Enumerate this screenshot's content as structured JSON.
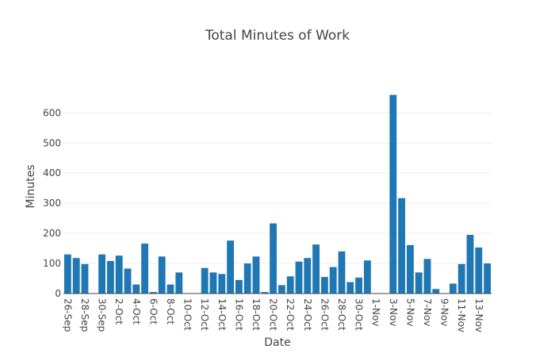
{
  "chart_data": {
    "type": "bar",
    "title": "Total Minutes of Work",
    "xlabel": "Date",
    "ylabel": "Minutes",
    "ylim": [
      0,
      680
    ],
    "yticks": [
      0,
      100,
      200,
      300,
      400,
      500,
      600
    ],
    "grid": true,
    "color": "#1f77b4",
    "categories": [
      "26-Sep",
      "27-Sep",
      "28-Sep",
      "29-Sep",
      "30-Sep",
      "1-Oct",
      "2-Oct",
      "3-Oct",
      "4-Oct",
      "5-Oct",
      "6-Oct",
      "7-Oct",
      "8-Oct",
      "9-Oct",
      "10-Oct",
      "11-Oct",
      "12-Oct",
      "13-Oct",
      "14-Oct",
      "15-Oct",
      "16-Oct",
      "17-Oct",
      "18-Oct",
      "19-Oct",
      "20-Oct",
      "21-Oct",
      "22-Oct",
      "23-Oct",
      "24-Oct",
      "25-Oct",
      "26-Oct",
      "27-Oct",
      "28-Oct",
      "29-Oct",
      "30-Oct",
      "31-Oct",
      "1-Nov",
      "2-Nov",
      "3-Nov",
      "4-Nov",
      "5-Nov",
      "6-Nov",
      "7-Nov",
      "8-Nov",
      "9-Nov",
      "10-Nov",
      "11-Nov",
      "12-Nov",
      "13-Nov",
      "14-Nov"
    ],
    "values": [
      130,
      118,
      98,
      0,
      130,
      108,
      126,
      83,
      30,
      166,
      5,
      123,
      30,
      70,
      0,
      0,
      85,
      70,
      65,
      176,
      45,
      100,
      123,
      5,
      233,
      28,
      57,
      106,
      118,
      163,
      55,
      88,
      140,
      38,
      53,
      110,
      0,
      0,
      660,
      317,
      161,
      70,
      115,
      15,
      0,
      33,
      98,
      195,
      153,
      100
    ],
    "tick_labels": [
      "26-Sep",
      "28-Sep",
      "30-Sep",
      "2-Oct",
      "4-Oct",
      "6-Oct",
      "8-Oct",
      "10-Oct",
      "12-Oct",
      "14-Oct",
      "16-Oct",
      "18-Oct",
      "20-Oct",
      "22-Oct",
      "24-Oct",
      "26-Oct",
      "28-Oct",
      "30-Oct",
      "1-Nov",
      "3-Nov",
      "5-Nov",
      "7-Nov",
      "9-Nov",
      "11-Nov",
      "13-Nov"
    ]
  }
}
